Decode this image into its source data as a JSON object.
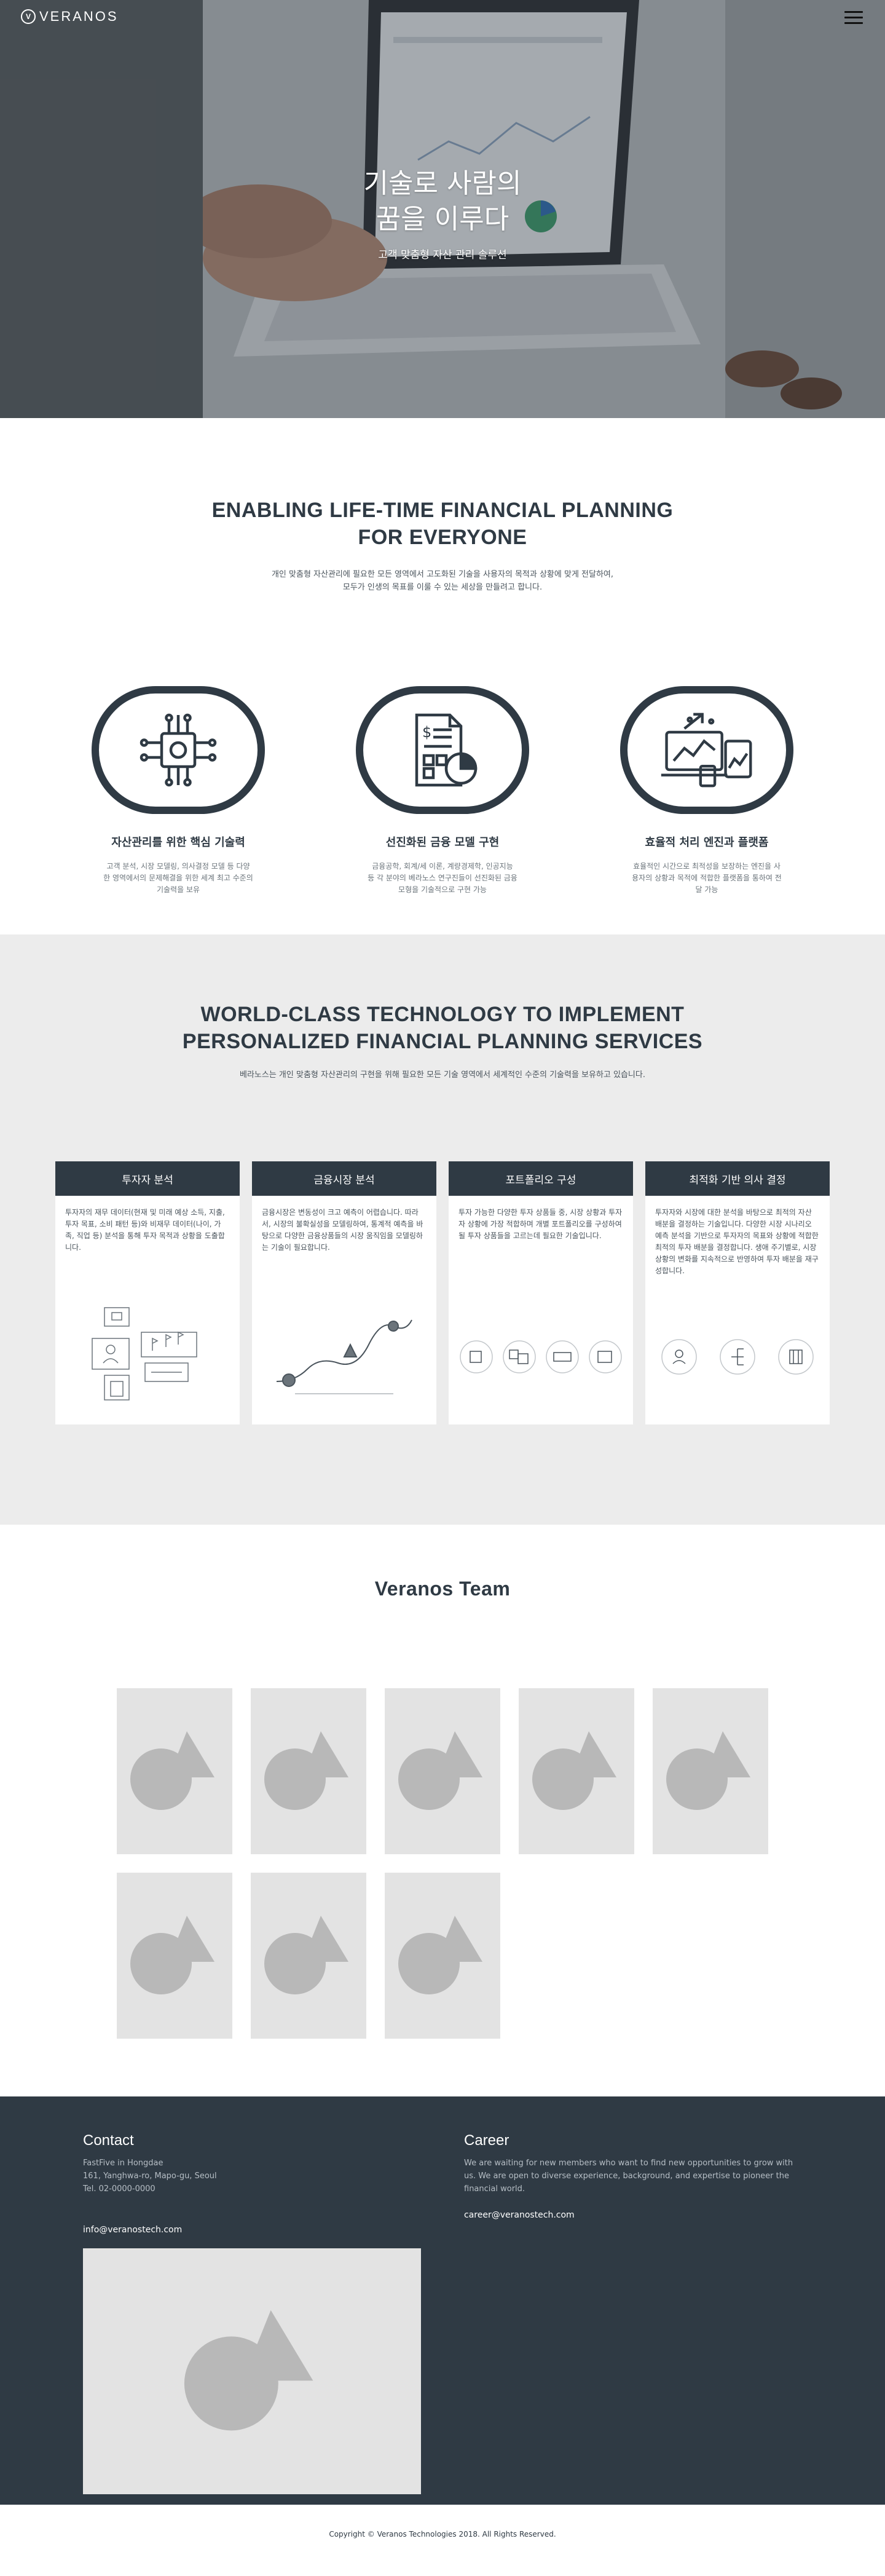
{
  "brand": {
    "logo_letter": "V",
    "name": "VERANOS"
  },
  "hero": {
    "title_line1": "기술로 사람의",
    "title_line2": "꿈을 이루다",
    "subtitle": "고객 맞춤형 자산 관리 솔루션"
  },
  "about": {
    "title_line1": "ENABLING LIFE-TIME FINANCIAL PLANNING",
    "title_line2": "FOR EVERYONE",
    "desc_line1": "개인 맞춤형 자산관리에 필요한 모든 영역에서 고도화된 기술을 사용자의 목적과 상황에 맞게 전달하여,",
    "desc_line2": "모두가 인생의 목표를 이룰 수 있는 세상을 만들려고 합니다.",
    "features": [
      {
        "icon": "chip-icon",
        "title": "자산관리를 위한 핵심 기술력",
        "desc": "고객 분석, 시장 모델링, 의사결정 모델 등 다양한 영역에서의 문제해결을 위한 세계 최고 수준의 기술력을 보유"
      },
      {
        "icon": "financial-report-icon",
        "title": "선진화된 금융 모델 구현",
        "desc": "금융공학, 회계/세 이론, 계량경제학, 인공지능 등 각 분야의 베라노스 연구진들이 선진화된 금융모형을 기술적으로 구현 가능"
      },
      {
        "icon": "devices-chart-icon",
        "title": "효율적 처리 엔진과 플랫폼",
        "desc": "효율적인 시간으로 최적성을 보장하는 엔진을 사용자의 상황과 목적에 적합한 플랫폼을 통하여 전달 가능"
      }
    ]
  },
  "tech": {
    "title_line1": "WORLD-CLASS TECHNOLOGY TO IMPLEMENT",
    "title_line2": "PERSONALIZED FINANCIAL PLANNING SERVICES",
    "desc": "베라노스는 개인 맞춤형 자산관리의 구현을 위해 필요한 모든 기술 영역에서 세계적인 수준의 기술력을 보유하고 있습니다.",
    "cards": [
      {
        "title": "투자자 분석",
        "text": "투자자의 재무 데이터(현재 및 미래 예상 소득, 지출, 투자 목표, 소비 패턴 등)와 비재무 데이터(나이, 가족, 직업 등) 분석을 통해 투자 목적과 상황을 도출합니다."
      },
      {
        "title": "금융시장 분석",
        "text": "금융시장은 변동성이 크고 예측이 어렵습니다. 따라서, 시장의 불확실성을 모델링하여, 통계적 예측을 바탕으로 다양한 금융상품들의 시장 움직임을 모델링하는 기술이 필요합니다."
      },
      {
        "title": "포트폴리오 구성",
        "text": "투자 가능한 다양한 투자 상품들 중, 시장 상황과 투자자 상황에 가장 적합하며 개별 포트폴리오를 구성하여 될 투자 상품들을 고르는데 필요한 기술입니다."
      },
      {
        "title": "최적화 기반 의사 결정",
        "text": "투자자와 시장에 대한 분석을 바탕으로 최적의 자산 배분을 결정하는 기술입니다. 다양한 시장 시나리오 예측 분석을 기반으로 투자자의 목표와 상황에 적합한 최적의 투자 배분을 결정합니다. 생애 주기별로, 시장 상황의 변화를 지속적으로 반영하여 투자 배분을 재구성합니다."
      }
    ]
  },
  "team": {
    "title": "Veranos Team",
    "member_count": 8
  },
  "footer": {
    "contact": {
      "title": "Contact",
      "company": "FastFive in Hongdae",
      "address": "161, Yanghwa-ro, Mapo-gu, Seoul",
      "tel": "Tel. 02-0000-0000",
      "email": "info@veranostech.com"
    },
    "career": {
      "title": "Career",
      "text": "We are waiting for new members who want to find new opportunities to grow with us. We are open to diverse experience, background, and expertise to pioneer the financial world.",
      "email": "career@veranostech.com"
    },
    "copyright": "Copyright © Veranos Technologies 2018. All Rights Reserved."
  },
  "colors": {
    "primary": "#2f3a44",
    "section_bg": "#ececec",
    "placeholder": "#e3e3e3",
    "placeholder_shape": "#b8b8b8"
  }
}
